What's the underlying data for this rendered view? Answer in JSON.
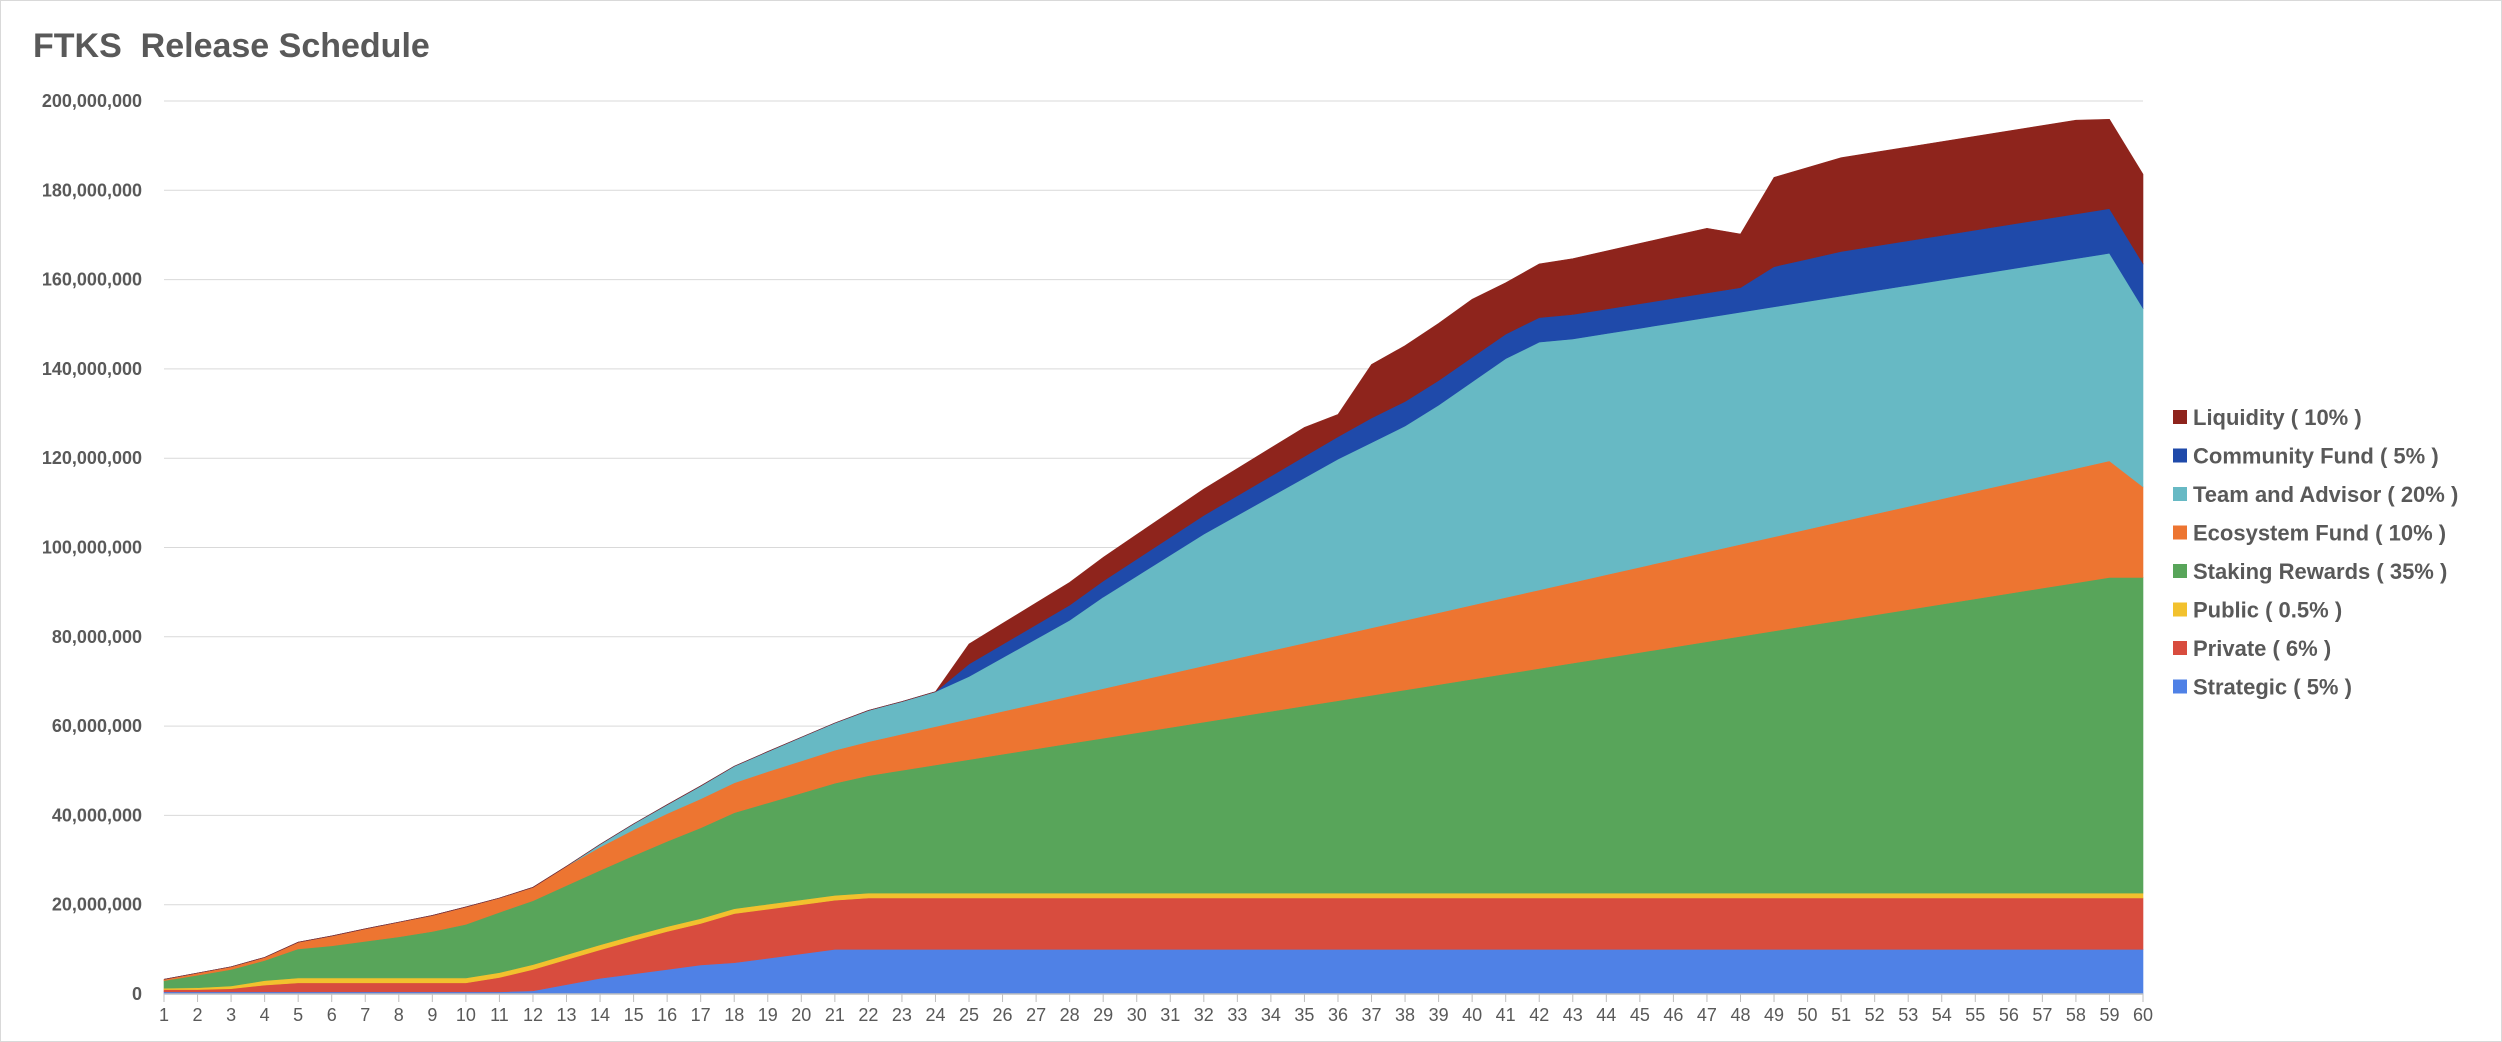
{
  "chart_data": {
    "type": "area",
    "stacked": true,
    "title": "FTKS  Release Schedule",
    "xlabel": "",
    "ylabel": "",
    "ylim": [
      0,
      200000000
    ],
    "yticks": [
      0,
      20000000,
      40000000,
      60000000,
      80000000,
      100000000,
      120000000,
      140000000,
      160000000,
      180000000,
      200000000
    ],
    "ytick_labels": [
      "0",
      "20,000,000",
      "40,000,000",
      "60,000,000",
      "80,000,000",
      "100,000,000",
      "120,000,000",
      "140,000,000",
      "160,000,000",
      "180,000,000",
      "200,000,000"
    ],
    "grid": true,
    "legend_position": "right",
    "x": [
      1,
      2,
      3,
      4,
      5,
      6,
      7,
      8,
      9,
      10,
      11,
      12,
      13,
      14,
      15,
      16,
      17,
      18,
      19,
      20,
      21,
      22,
      23,
      24,
      25,
      26,
      27,
      28,
      29,
      30,
      31,
      32,
      33,
      34,
      35,
      36,
      37,
      38,
      39,
      40,
      41,
      42,
      43,
      44,
      45,
      46,
      47,
      48,
      49,
      50,
      51,
      52,
      53,
      54,
      55,
      56,
      57,
      58,
      59,
      60
    ],
    "series": [
      {
        "name": "Strategic ( 5% )",
        "color": "#4f81e6",
        "values": [
          500000,
          500000,
          500000,
          500000,
          500000,
          500000,
          500000,
          500000,
          500000,
          500000,
          500000,
          700000,
          2100000,
          3500000,
          4500000,
          5500000,
          6500000,
          7000000,
          8000000,
          9000000,
          10000000,
          10000000,
          10000000,
          10000000,
          10000000,
          10000000,
          10000000,
          10000000,
          10000000,
          10000000,
          10000000,
          10000000,
          10000000,
          10000000,
          10000000,
          10000000,
          10000000,
          10000000,
          10000000,
          10000000,
          10000000,
          10000000,
          10000000,
          10000000,
          10000000,
          10000000,
          10000000,
          10000000,
          10000000,
          10000000,
          10000000,
          10000000,
          10000000,
          10000000,
          10000000,
          10000000,
          10000000,
          10000000,
          10000000,
          10000000
        ]
      },
      {
        "name": "Private ( 6% )",
        "color": "#d84c3e",
        "values": [
          500000,
          500000,
          700000,
          1500000,
          2000000,
          2000000,
          2000000,
          2000000,
          2000000,
          2000000,
          3200000,
          4800000,
          5600000,
          6400000,
          7500000,
          8500000,
          9300000,
          11000000,
          11000000,
          11000000,
          11000000,
          11500000,
          11500000,
          11500000,
          11500000,
          11500000,
          11500000,
          11500000,
          11500000,
          11500000,
          11500000,
          11500000,
          11500000,
          11500000,
          11500000,
          11500000,
          11500000,
          11500000,
          11500000,
          11500000,
          11500000,
          11500000,
          11500000,
          11500000,
          11500000,
          11500000,
          11500000,
          11500000,
          11500000,
          11500000,
          11500000,
          11500000,
          11500000,
          11500000,
          11500000,
          11500000,
          11500000,
          11500000,
          11500000,
          11500000
        ]
      },
      {
        "name": "Public ( 0.5% )",
        "color": "#f2c12e",
        "values": [
          300000,
          400000,
          600000,
          1000000,
          1100000,
          1100000,
          1100000,
          1100000,
          1100000,
          1100000,
          1100000,
          1100000,
          1100000,
          1100000,
          1100000,
          1100000,
          1100000,
          1100000,
          1100000,
          1100000,
          1100000,
          1100000,
          1100000,
          1100000,
          1100000,
          1100000,
          1100000,
          1100000,
          1100000,
          1100000,
          1100000,
          1100000,
          1100000,
          1100000,
          1100000,
          1100000,
          1100000,
          1100000,
          1100000,
          1100000,
          1100000,
          1100000,
          1100000,
          1100000,
          1100000,
          1100000,
          1100000,
          1100000,
          1100000,
          1100000,
          1100000,
          1100000,
          1100000,
          1100000,
          1100000,
          1100000,
          1100000,
          1100000,
          1100000,
          1100000
        ]
      },
      {
        "name": "Staking Rewards ( 35% )",
        "color": "#58a55a",
        "values": [
          1700000,
          2800000,
          3700000,
          4500000,
          6500000,
          7200000,
          8200000,
          9200000,
          10400000,
          12000000,
          13500000,
          14300000,
          15500000,
          16700000,
          17900000,
          19100000,
          20300000,
          21500000,
          22700000,
          23900000,
          25100000,
          26300000,
          27500000,
          28700000,
          29900000,
          31100000,
          32300000,
          33500000,
          34700000,
          35900000,
          37100000,
          38300000,
          39500000,
          40700000,
          41900000,
          43100000,
          44300000,
          45500000,
          46700000,
          47900000,
          49100000,
          50300000,
          51500000,
          52700000,
          53900000,
          55100000,
          56300000,
          57500000,
          58700000,
          59900000,
          61100000,
          62300000,
          63500000,
          64700000,
          65900000,
          67100000,
          68300000,
          69500000,
          70700000,
          70700000
        ]
      },
      {
        "name": "Ecosystem Fund ( 10% )",
        "color": "#ed7531",
        "values": [
          300000,
          500000,
          600000,
          700000,
          1500000,
          2200000,
          2800000,
          3300000,
          3600000,
          3900000,
          3200000,
          3000000,
          4300000,
          5200000,
          5800000,
          6200000,
          6500000,
          6700000,
          7000000,
          7200000,
          7400000,
          7600000,
          8100000,
          8600000,
          9100000,
          9600000,
          10100000,
          10600000,
          11100000,
          11600000,
          12100000,
          12600000,
          13100000,
          13600000,
          14100000,
          14600000,
          15100000,
          15600000,
          16100000,
          16600000,
          17100000,
          17600000,
          18100000,
          18600000,
          19100000,
          19600000,
          20100000,
          20600000,
          21100000,
          21600000,
          22100000,
          22600000,
          23100000,
          23600000,
          24100000,
          24600000,
          25100000,
          25600000,
          26100000,
          20300000
        ]
      },
      {
        "name": "Team and Advisor ( 20% )",
        "color": "#67b9c4",
        "values": [
          0,
          0,
          0,
          0,
          0,
          0,
          0,
          0,
          0,
          0,
          0,
          0,
          0,
          600000,
          1300000,
          2000000,
          2900000,
          3700000,
          4500000,
          5300000,
          6100000,
          7000000,
          7300000,
          7800000,
          9500000,
          12000000,
          14500000,
          17000000,
          20500000,
          23500000,
          26500000,
          29500000,
          32000000,
          34500000,
          37000000,
          39500000,
          41500000,
          43500000,
          46500000,
          50000000,
          53500000,
          55500000,
          54500000,
          54000000,
          53500000,
          53000000,
          52500000,
          52000000,
          51500000,
          51000000,
          50500000,
          50000000,
          49500000,
          49000000,
          48500000,
          48000000,
          47500000,
          47000000,
          46500000,
          40000000
        ]
      },
      {
        "name": "Community Fund ( 5% )",
        "color": "#1f4aaa",
        "values": [
          0,
          0,
          0,
          0,
          0,
          0,
          0,
          0,
          0,
          0,
          0,
          0,
          0,
          0,
          0,
          0,
          0,
          0,
          0,
          0,
          0,
          0,
          0,
          0,
          2800000,
          3000000,
          3200000,
          3400000,
          3600000,
          3800000,
          4000000,
          4200000,
          4400000,
          4600000,
          4800000,
          5000000,
          5500000,
          5500000,
          5500000,
          5500000,
          5500000,
          5500000,
          5500000,
          5500000,
          5500000,
          5500000,
          5500000,
          5500000,
          9000000,
          9500000,
          10000000,
          10000000,
          10000000,
          10000000,
          10000000,
          10000000,
          10000000,
          10000000,
          10000000,
          10000000
        ]
      },
      {
        "name": "Liquidity ( 10% )",
        "color": "#8e241c",
        "values": [
          0,
          0,
          0,
          0,
          0,
          0,
          0,
          0,
          0,
          0,
          0,
          0,
          0,
          0,
          0,
          0,
          0,
          0,
          0,
          0,
          0,
          0,
          0,
          0,
          4500000,
          4700000,
          4900000,
          5100000,
          5300000,
          5500000,
          5700000,
          5900000,
          6100000,
          6300000,
          6500000,
          5000000,
          12000000,
          12500000,
          12800000,
          13000000,
          11500000,
          12000000,
          12500000,
          13000000,
          13500000,
          14000000,
          14500000,
          12000000,
          20000000,
          20500000,
          21000000,
          21000000,
          21000000,
          21000000,
          21000000,
          21000000,
          21000000,
          21000000,
          20000000,
          20000000
        ]
      }
    ]
  }
}
